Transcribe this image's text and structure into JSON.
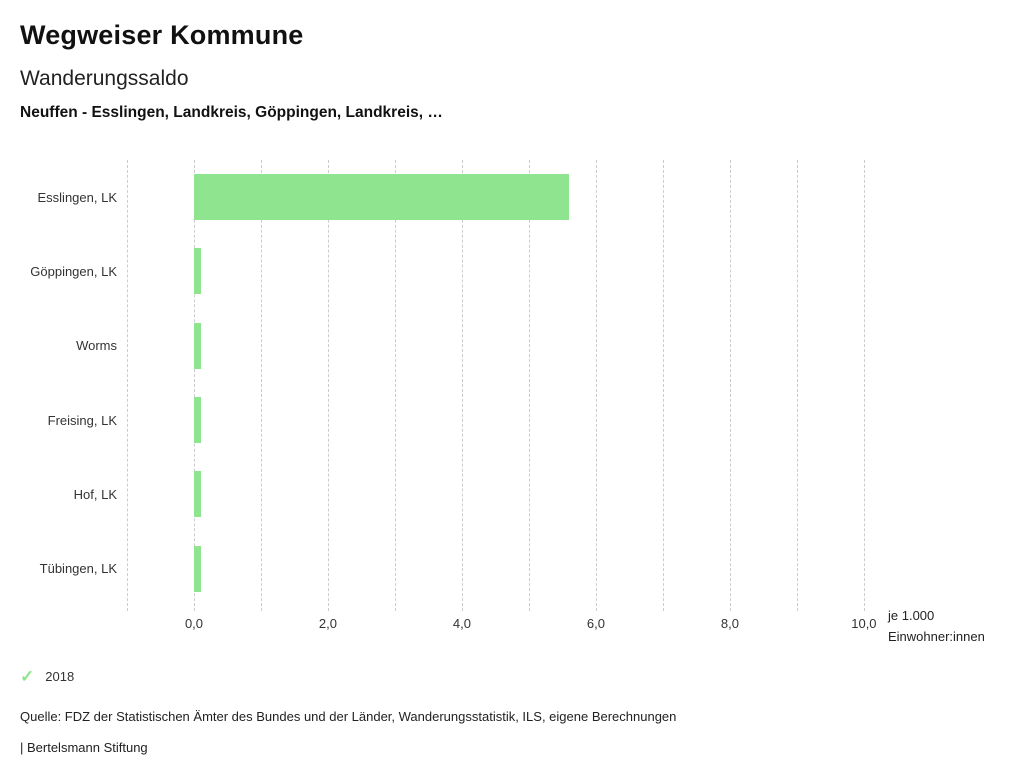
{
  "header": {
    "title": "Wegweiser Kommune",
    "subtitle": "Wanderungssaldo",
    "selection": "Neuffen - Esslingen, Landkreis, Göppingen, Landkreis, …"
  },
  "chart_data": {
    "type": "bar",
    "orientation": "horizontal",
    "title": "Wanderungssaldo",
    "categories": [
      "Esslingen, LK",
      "Göppingen, LK",
      "Worms",
      "Freising, LK",
      "Hof, LK",
      "Tübingen, LK"
    ],
    "series": [
      {
        "name": "2018",
        "values": [
          5.6,
          0.1,
          0.1,
          0.1,
          0.1,
          0.1
        ]
      }
    ],
    "x_ticks": [
      {
        "label": "0,0",
        "value": 0
      },
      {
        "label": "2,0",
        "value": 2
      },
      {
        "label": "4,0",
        "value": 4
      },
      {
        "label": "6,0",
        "value": 6
      },
      {
        "label": "8,0",
        "value": 8
      },
      {
        "label": "10,0",
        "value": 10
      }
    ],
    "xlim": [
      -1,
      10.3
    ],
    "grid": "dashed-vertical",
    "bar_color": "#8fe48f",
    "xlabel_line1": "je 1.000",
    "xlabel_line2": "Einwohner:innen",
    "legend_position": "bottom-left"
  },
  "legend": {
    "items": [
      {
        "label": "2018",
        "color": "#8fe48f",
        "check_icon": "✓"
      }
    ]
  },
  "footer": {
    "source": "Quelle: FDZ der Statistischen Ämter des Bundes und der Länder, Wanderungsstatistik, ILS, eigene Berechnungen",
    "branding": "| Bertelsmann Stiftung"
  }
}
